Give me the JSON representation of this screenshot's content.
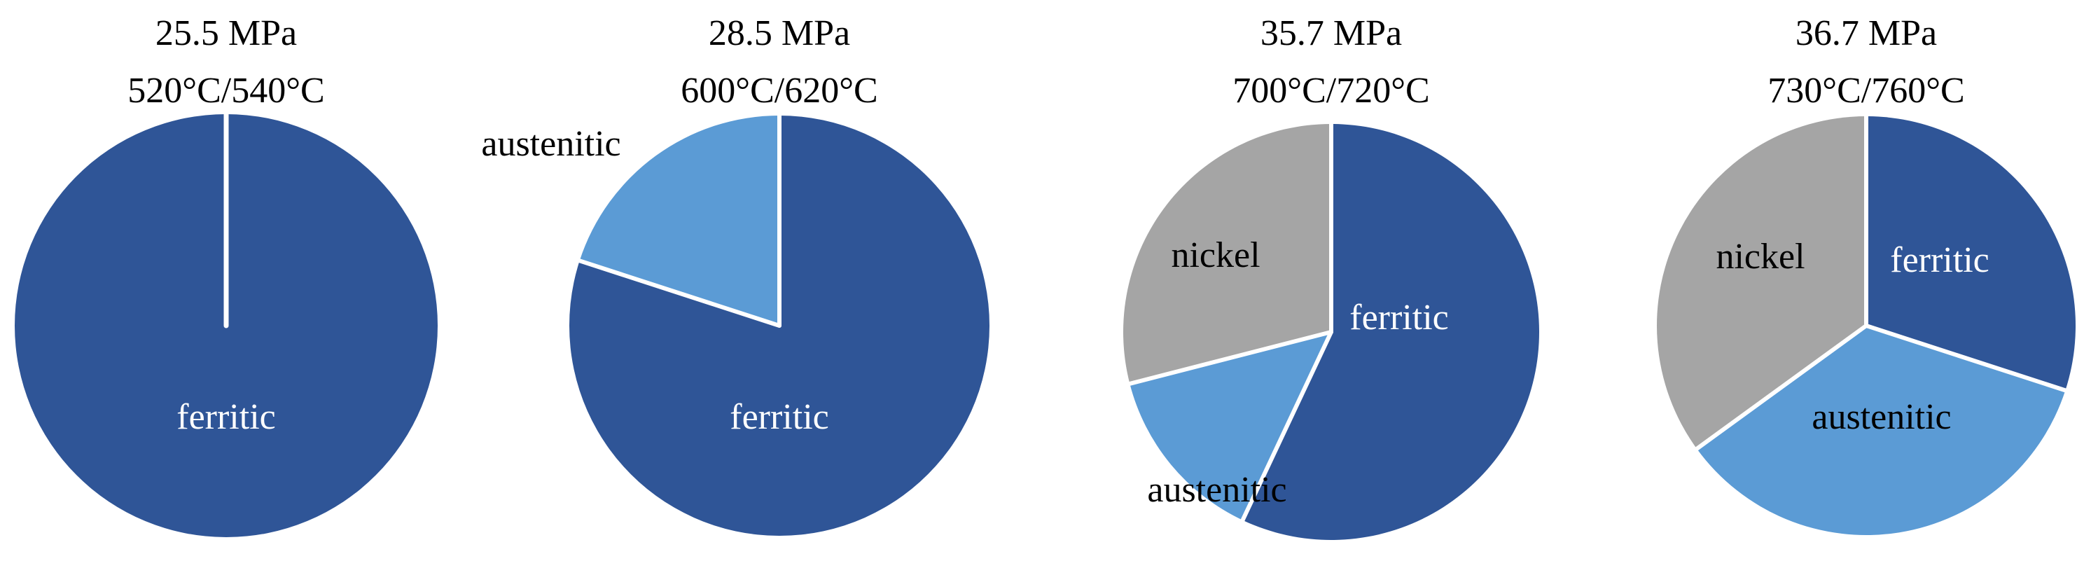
{
  "colors": {
    "ferritic": "#2f5597",
    "austenitic": "#5b9bd5",
    "nickel": "#a5a5a5",
    "separator": "#ffffff"
  },
  "chart_data": [
    {
      "type": "pie",
      "title": [
        "25.5 MPa",
        "520°C/540°C"
      ],
      "slices": [
        {
          "label": "ferritic",
          "value": 100,
          "color": "#2f5597",
          "label_color": "#ffffff"
        }
      ]
    },
    {
      "type": "pie",
      "title": [
        "28.5 MPa",
        "600°C/620°C"
      ],
      "slices": [
        {
          "label": "ferritic",
          "value": 80,
          "color": "#2f5597",
          "label_color": "#ffffff"
        },
        {
          "label": "austenitic",
          "value": 20,
          "color": "#5b9bd5",
          "label_color": "#000000"
        }
      ]
    },
    {
      "type": "pie",
      "title": [
        "35.7 MPa",
        "700°C/720°C"
      ],
      "slices": [
        {
          "label": "ferritic",
          "value": 57,
          "color": "#2f5597",
          "label_color": "#ffffff"
        },
        {
          "label": "austenitic",
          "value": 14,
          "color": "#5b9bd5",
          "label_color": "#000000"
        },
        {
          "label": "nickel",
          "value": 29,
          "color": "#a5a5a5",
          "label_color": "#000000"
        }
      ]
    },
    {
      "type": "pie",
      "title": [
        "36.7 MPa",
        "730°C/760°C"
      ],
      "slices": [
        {
          "label": "ferritic",
          "value": 30,
          "color": "#2f5597",
          "label_color": "#ffffff"
        },
        {
          "label": "austenitic",
          "value": 35,
          "color": "#5b9bd5",
          "label_color": "#000000"
        },
        {
          "label": "nickel",
          "value": 35,
          "color": "#a5a5a5",
          "label_color": "#000000"
        }
      ]
    }
  ]
}
